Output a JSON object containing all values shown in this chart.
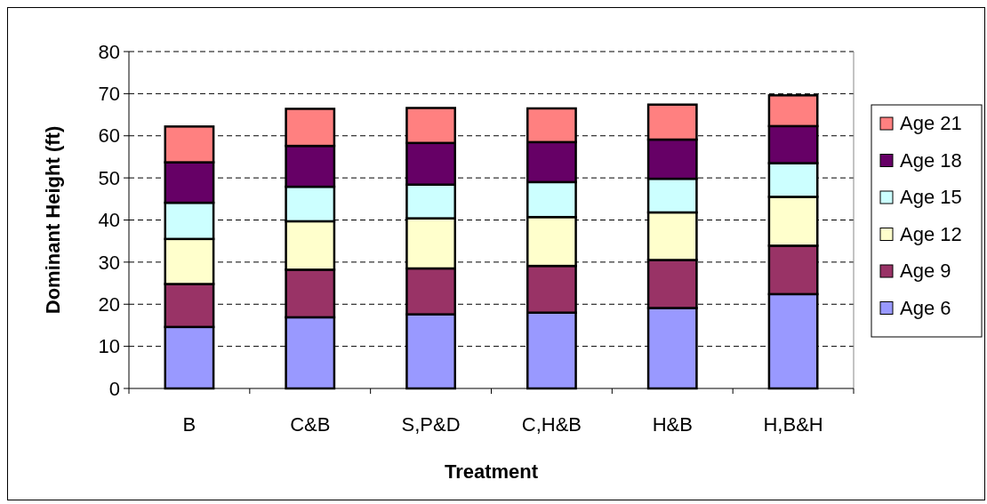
{
  "chart_data": {
    "type": "bar",
    "stacked": true,
    "xlabel": "Treatment",
    "ylabel": "Dominant Height (ft)",
    "categories": [
      "B",
      "C&B",
      "S,P&D",
      "C,H&B",
      "H&B",
      "H,B&H"
    ],
    "series": [
      {
        "name": "Age 6",
        "color": "#9999ff",
        "values": [
          14.6,
          16.9,
          17.6,
          18.0,
          19.1,
          22.4
        ]
      },
      {
        "name": "Age 9",
        "color": "#993366",
        "values": [
          10.2,
          11.3,
          10.9,
          11.1,
          11.4,
          11.5
        ]
      },
      {
        "name": "Age 12",
        "color": "#ffffcc",
        "values": [
          10.7,
          11.5,
          11.9,
          11.6,
          11.3,
          11.6
        ]
      },
      {
        "name": "Age 15",
        "color": "#ccffff",
        "values": [
          8.6,
          8.2,
          8.0,
          8.3,
          8.0,
          8.0
        ]
      },
      {
        "name": "Age 18",
        "color": "#660066",
        "values": [
          9.6,
          9.7,
          9.9,
          9.5,
          9.3,
          8.8
        ]
      },
      {
        "name": "Age 21",
        "color": "#ff8080",
        "values": [
          8.5,
          8.8,
          8.3,
          8.0,
          8.3,
          7.3
        ]
      }
    ],
    "ylim": [
      0,
      80
    ],
    "yticks": [
      0,
      10,
      20,
      30,
      40,
      50,
      60,
      70,
      80
    ],
    "grid": "y",
    "legend": "right"
  }
}
